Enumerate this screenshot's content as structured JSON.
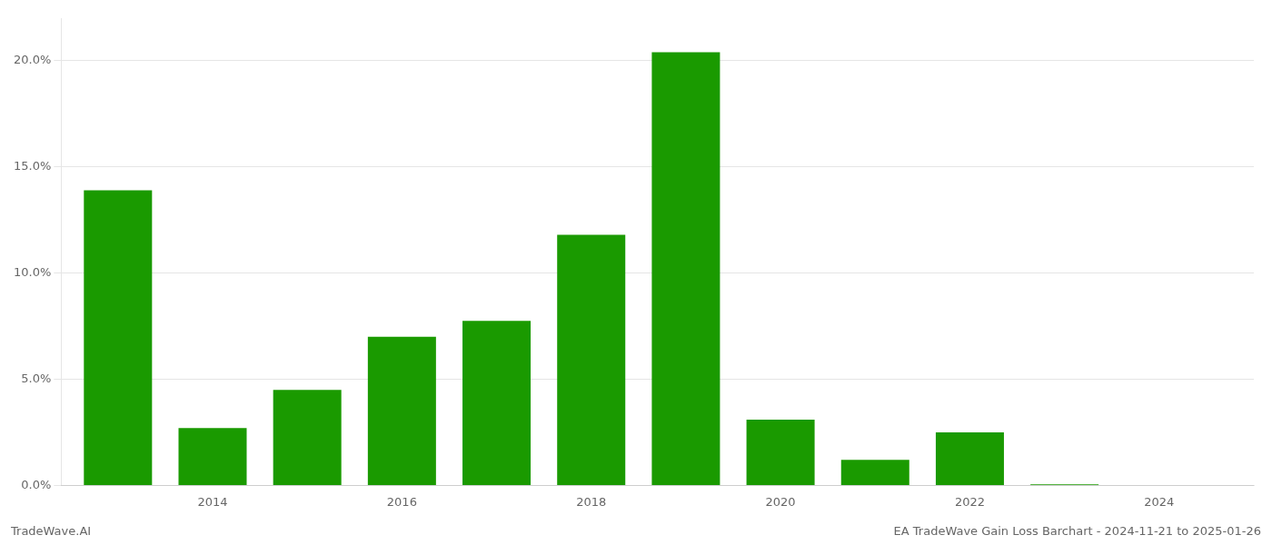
{
  "chart_data": {
    "type": "bar",
    "x": [
      2013,
      2014,
      2015,
      2016,
      2017,
      2018,
      2019,
      2020,
      2021,
      2022,
      2023,
      2024
    ],
    "values": [
      13.9,
      2.7,
      4.5,
      7.0,
      7.75,
      11.8,
      20.4,
      3.1,
      1.2,
      2.5,
      0.05,
      0.0
    ],
    "color": "#1a9a00",
    "xlim": [
      2012.4,
      2025.0
    ],
    "xticks": [
      2014,
      2016,
      2018,
      2020,
      2022,
      2024
    ],
    "ylim": [
      0,
      22
    ],
    "yticks": [
      {
        "value": 0.0,
        "label": "0.0%"
      },
      {
        "value": 5.0,
        "label": "5.0%"
      },
      {
        "value": 10.0,
        "label": "10.0%"
      },
      {
        "value": 15.0,
        "label": "15.0%"
      },
      {
        "value": 20.0,
        "label": "20.0%"
      }
    ],
    "grid": "y",
    "annotations": [
      "TradeWave.AI",
      "EA TradeWave Gain Loss Barchart - 2024-11-21 to 2025-01-26"
    ]
  }
}
